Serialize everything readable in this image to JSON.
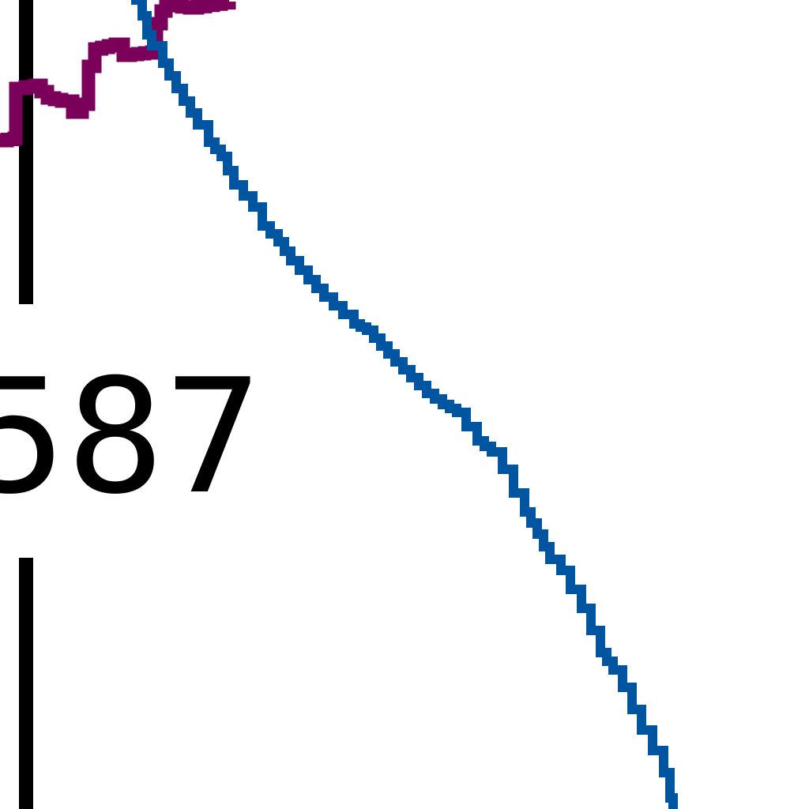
{
  "chart_data": {
    "type": "line",
    "title": "",
    "xlabel": "",
    "ylabel": "",
    "grid": false,
    "tick_labels": [
      "587"
    ],
    "series": [
      {
        "color": "#7a005a",
        "points": [
          [
            0,
            178
          ],
          [
            18,
            175
          ],
          [
            20,
            112
          ],
          [
            44,
            108
          ],
          [
            60,
            124
          ],
          [
            78,
            128
          ],
          [
            92,
            142
          ],
          [
            104,
            132
          ],
          [
            112,
            84
          ],
          [
            120,
            62
          ],
          [
            146,
            56
          ],
          [
            156,
            70
          ],
          [
            192,
            66
          ],
          [
            198,
            30
          ],
          [
            204,
            14
          ],
          [
            210,
            6
          ],
          [
            240,
            10
          ],
          [
            290,
            2
          ]
        ]
      },
      {
        "color": "#0055a0",
        "points": [
          [
            166,
            0
          ],
          [
            180,
            20
          ],
          [
            186,
            44
          ],
          [
            192,
            58
          ],
          [
            206,
            80
          ],
          [
            214,
            96
          ],
          [
            232,
            128
          ],
          [
            250,
            158
          ],
          [
            264,
            180
          ],
          [
            280,
            198
          ],
          [
            296,
            234
          ],
          [
            320,
            262
          ],
          [
            332,
            286
          ],
          [
            352,
            306
          ],
          [
            368,
            330
          ],
          [
            390,
            354
          ],
          [
            410,
            376
          ],
          [
            434,
            398
          ],
          [
            448,
            410
          ],
          [
            464,
            418
          ],
          [
            482,
            438
          ],
          [
            500,
            458
          ],
          [
            520,
            478
          ],
          [
            540,
            498
          ],
          [
            560,
            512
          ],
          [
            578,
            522
          ],
          [
            590,
            540
          ],
          [
            604,
            558
          ],
          [
            622,
            572
          ],
          [
            636,
            594
          ],
          [
            650,
            624
          ],
          [
            664,
            648
          ],
          [
            680,
            676
          ],
          [
            696,
            708
          ],
          [
            710,
            722
          ],
          [
            722,
            746
          ],
          [
            736,
            770
          ],
          [
            748,
            798
          ],
          [
            760,
            826
          ],
          [
            776,
            848
          ],
          [
            788,
            870
          ],
          [
            800,
            898
          ],
          [
            812,
            924
          ],
          [
            826,
            950
          ],
          [
            840,
            978
          ],
          [
            848,
            1010
          ],
          [
            852,
            1024
          ]
        ]
      }
    ]
  }
}
